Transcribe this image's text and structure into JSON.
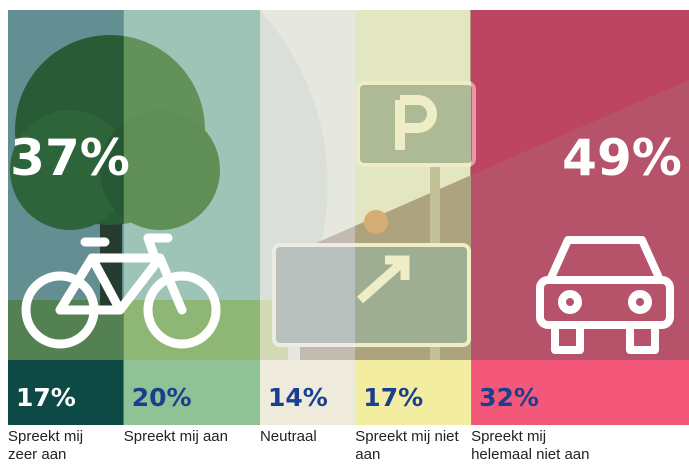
{
  "chart_data": {
    "type": "stacked-bar",
    "categories": [
      "Spreekt mij zeer aan",
      "Spreekt mij aan",
      "Neutraal",
      "Spreekt mij niet aan",
      "Spreekt mij helemaal niet aan"
    ],
    "values": [
      17,
      20,
      14,
      17,
      32
    ],
    "value_labels": [
      "17%",
      "20%",
      "14%",
      "17%",
      "32%"
    ],
    "colors": [
      "#0e4a45",
      "#8fc294",
      "#efebdc",
      "#f3eda2",
      "#f3587b"
    ],
    "xlim": [
      0,
      100
    ],
    "summaries": [
      {
        "value": 37,
        "label": "37%"
      },
      {
        "value": 49,
        "label": "49%"
      }
    ]
  }
}
